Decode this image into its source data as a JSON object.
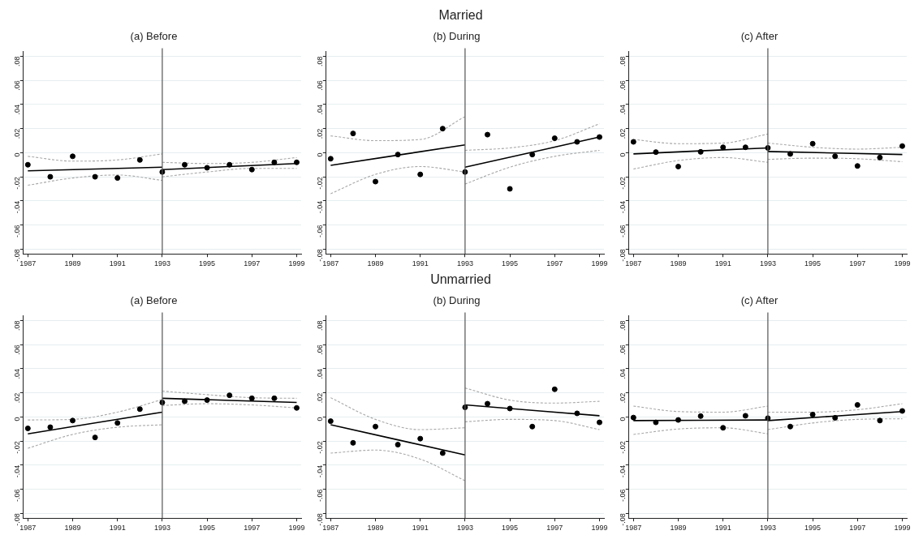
{
  "chart_data": [
    {
      "type": "scatter",
      "title": "(a) Before",
      "xlim": [
        1986.8,
        1999.2
      ],
      "xticks": [
        1987,
        1989,
        1991,
        1993,
        1995,
        1997,
        1999
      ],
      "ylim": [
        -0.084,
        0.084
      ],
      "yticks": [
        {
          "value": -0.08,
          "label": "-.08"
        },
        {
          "value": -0.06,
          "label": "-.06"
        },
        {
          "value": -0.04,
          "label": "-.04"
        },
        {
          "value": -0.02,
          "label": "-.02"
        },
        {
          "value": 0,
          "label": "0"
        },
        {
          "value": 0.02,
          "label": ".02"
        },
        {
          "value": 0.04,
          "label": ".04"
        },
        {
          "value": 0.06,
          "label": ".06"
        },
        {
          "value": 0.08,
          "label": ".08"
        }
      ],
      "grid": "y",
      "legend": false,
      "ref_lines": [
        {
          "axis": "x",
          "value": 1993,
          "color": "#555555"
        }
      ],
      "series": [
        {
          "type": "scatter",
          "marker": "circle",
          "color": "#000000",
          "x": [
            1987,
            1988,
            1989,
            1990,
            1991,
            1992,
            1993,
            1994,
            1995,
            1996,
            1997,
            1998,
            1999
          ],
          "values": [
            -0.01,
            -0.02,
            -0.003,
            -0.02,
            -0.021,
            -0.006,
            -0.016,
            -0.01,
            -0.0125,
            -0.01,
            -0.014,
            -0.008,
            -0.008
          ]
        },
        {
          "type": "line",
          "color": "#000000",
          "line_style": "solid",
          "x": [
            1987,
            1993
          ],
          "values": [
            -0.015,
            -0.012
          ]
        },
        {
          "type": "line",
          "color": "#000000",
          "line_style": "solid",
          "x": [
            1993,
            1999
          ],
          "values": [
            -0.014,
            -0.009
          ]
        },
        {
          "type": "line",
          "color": "#a8a8a8",
          "line_style": "dashed",
          "x": [
            1987,
            1989,
            1991,
            1993
          ],
          "values": [
            -0.003,
            -0.007,
            -0.006,
            -0.001
          ]
        },
        {
          "type": "line",
          "color": "#a8a8a8",
          "line_style": "dashed",
          "x": [
            1987,
            1989,
            1991,
            1993
          ],
          "values": [
            -0.027,
            -0.021,
            -0.0185,
            -0.023
          ]
        },
        {
          "type": "line",
          "color": "#a8a8a8",
          "line_style": "dashed",
          "x": [
            1993,
            1995,
            1997,
            1999
          ],
          "values": [
            -0.008,
            -0.009,
            -0.008,
            -0.004
          ]
        },
        {
          "type": "line",
          "color": "#a8a8a8",
          "line_style": "dashed",
          "x": [
            1993,
            1995,
            1997,
            1999
          ],
          "values": [
            -0.02,
            -0.016,
            -0.013,
            -0.013
          ]
        }
      ]
    },
    {
      "type": "scatter",
      "title": "(b) During",
      "annotations": [
        "Married"
      ],
      "xlim": [
        1986.8,
        1999.2
      ],
      "xticks": [
        1987,
        1989,
        1991,
        1993,
        1995,
        1997,
        1999
      ],
      "ylim": [
        -0.084,
        0.084
      ],
      "yticks": [
        {
          "value": -0.08,
          "label": "-.08"
        },
        {
          "value": -0.06,
          "label": "-.06"
        },
        {
          "value": -0.04,
          "label": "-.04"
        },
        {
          "value": -0.02,
          "label": "-.02"
        },
        {
          "value": 0,
          "label": "0"
        },
        {
          "value": 0.02,
          "label": ".02"
        },
        {
          "value": 0.04,
          "label": ".04"
        },
        {
          "value": 0.06,
          "label": ".06"
        },
        {
          "value": 0.08,
          "label": ".08"
        }
      ],
      "grid": "y",
      "legend": false,
      "ref_lines": [
        {
          "axis": "x",
          "value": 1993,
          "color": "#555555"
        }
      ],
      "series": [
        {
          "type": "scatter",
          "marker": "circle",
          "color": "#000000",
          "x": [
            1987,
            1988,
            1989,
            1990,
            1991,
            1992,
            1993,
            1994,
            1995,
            1996,
            1997,
            1998,
            1999
          ],
          "values": [
            -0.005,
            0.016,
            -0.024,
            -0.0015,
            -0.018,
            0.02,
            -0.016,
            0.015,
            -0.03,
            -0.0015,
            0.012,
            0.009,
            0.013
          ]
        },
        {
          "type": "line",
          "color": "#000000",
          "line_style": "solid",
          "x": [
            1987,
            1993
          ],
          "values": [
            -0.0105,
            0.0065
          ]
        },
        {
          "type": "line",
          "color": "#000000",
          "line_style": "solid",
          "x": [
            1993,
            1999
          ],
          "values": [
            -0.012,
            0.013
          ]
        },
        {
          "type": "line",
          "color": "#a8a8a8",
          "line_style": "dashed",
          "x": [
            1987,
            1989,
            1991,
            1993
          ],
          "values": [
            0.014,
            0.01,
            0.011,
            0.03
          ]
        },
        {
          "type": "line",
          "color": "#a8a8a8",
          "line_style": "dashed",
          "x": [
            1987,
            1989,
            1991,
            1993
          ],
          "values": [
            -0.034,
            -0.018,
            -0.0115,
            -0.016
          ]
        },
        {
          "type": "line",
          "color": "#a8a8a8",
          "line_style": "dashed",
          "x": [
            1993,
            1995,
            1997,
            1999
          ],
          "values": [
            0.002,
            0.004,
            0.01,
            0.024
          ]
        },
        {
          "type": "line",
          "color": "#a8a8a8",
          "line_style": "dashed",
          "x": [
            1993,
            1995,
            1997,
            1999
          ],
          "values": [
            -0.026,
            -0.012,
            -0.003,
            0.002
          ]
        }
      ]
    },
    {
      "type": "scatter",
      "title": "(c) After",
      "xlim": [
        1986.8,
        1999.2
      ],
      "xticks": [
        1987,
        1989,
        1991,
        1993,
        1995,
        1997,
        1999
      ],
      "ylim": [
        -0.084,
        0.084
      ],
      "yticks": [
        {
          "value": -0.08,
          "label": "-.08"
        },
        {
          "value": -0.06,
          "label": "-.06"
        },
        {
          "value": -0.04,
          "label": "-.04"
        },
        {
          "value": -0.02,
          "label": "-.02"
        },
        {
          "value": 0,
          "label": "0"
        },
        {
          "value": 0.02,
          "label": ".02"
        },
        {
          "value": 0.04,
          "label": ".04"
        },
        {
          "value": 0.06,
          "label": ".06"
        },
        {
          "value": 0.08,
          "label": ".08"
        }
      ],
      "grid": "y",
      "legend": false,
      "ref_lines": [
        {
          "axis": "x",
          "value": 1993,
          "color": "#555555"
        }
      ],
      "series": [
        {
          "type": "scatter",
          "marker": "circle",
          "color": "#000000",
          "x": [
            1987,
            1988,
            1989,
            1990,
            1991,
            1992,
            1993,
            1994,
            1995,
            1996,
            1997,
            1998,
            1999
          ],
          "values": [
            0.009,
            0.0005,
            -0.0115,
            0.0007,
            0.0045,
            0.0045,
            0.004,
            -0.001,
            0.0075,
            -0.003,
            -0.011,
            -0.004,
            0.0055
          ]
        },
        {
          "type": "line",
          "color": "#000000",
          "line_style": "solid",
          "x": [
            1987,
            1993
          ],
          "values": [
            -0.001,
            0.004
          ]
        },
        {
          "type": "line",
          "color": "#000000",
          "line_style": "solid",
          "x": [
            1993,
            1999
          ],
          "values": [
            0.001,
            -0.0015
          ]
        },
        {
          "type": "line",
          "color": "#a8a8a8",
          "line_style": "dashed",
          "x": [
            1987,
            1989,
            1991,
            1993
          ],
          "values": [
            0.011,
            0.0075,
            0.008,
            0.0155
          ]
        },
        {
          "type": "line",
          "color": "#a8a8a8",
          "line_style": "dashed",
          "x": [
            1987,
            1989,
            1991,
            1993
          ],
          "values": [
            -0.0135,
            -0.0065,
            -0.004,
            -0.008
          ]
        },
        {
          "type": "line",
          "color": "#a8a8a8",
          "line_style": "dashed",
          "x": [
            1993,
            1995,
            1997,
            1999
          ],
          "values": [
            0.008,
            0.0045,
            0.003,
            0.0045
          ]
        },
        {
          "type": "line",
          "color": "#a8a8a8",
          "line_style": "dashed",
          "x": [
            1993,
            1995,
            1997,
            1999
          ],
          "values": [
            -0.0055,
            -0.0045,
            -0.005,
            -0.0075
          ]
        }
      ]
    },
    {
      "type": "scatter",
      "title": "(a) Before",
      "xlim": [
        1986.8,
        1999.2
      ],
      "xticks": [
        1987,
        1989,
        1991,
        1993,
        1995,
        1997,
        1999
      ],
      "ylim": [
        -0.084,
        0.084
      ],
      "yticks": [
        {
          "value": -0.08,
          "label": "-.08"
        },
        {
          "value": -0.06,
          "label": "-.06"
        },
        {
          "value": -0.04,
          "label": "-.04"
        },
        {
          "value": -0.02,
          "label": "-.02"
        },
        {
          "value": 0,
          "label": "0"
        },
        {
          "value": 0.02,
          "label": ".02"
        },
        {
          "value": 0.04,
          "label": ".04"
        },
        {
          "value": 0.06,
          "label": ".06"
        },
        {
          "value": 0.08,
          "label": ".08"
        }
      ],
      "grid": "y",
      "legend": false,
      "ref_lines": [
        {
          "axis": "x",
          "value": 1993,
          "color": "#555555"
        }
      ],
      "series": [
        {
          "type": "scatter",
          "marker": "circle",
          "color": "#000000",
          "x": [
            1987,
            1988,
            1989,
            1990,
            1991,
            1992,
            1993,
            1994,
            1995,
            1996,
            1997,
            1998,
            1999
          ],
          "values": [
            -0.0095,
            -0.0085,
            -0.003,
            -0.017,
            -0.005,
            0.0065,
            0.012,
            0.013,
            0.014,
            0.018,
            0.0155,
            0.0155,
            0.0075
          ]
        },
        {
          "type": "line",
          "color": "#000000",
          "line_style": "solid",
          "x": [
            1987,
            1993
          ],
          "values": [
            -0.014,
            0.004
          ]
        },
        {
          "type": "line",
          "color": "#000000",
          "line_style": "solid",
          "x": [
            1993,
            1999
          ],
          "values": [
            0.0155,
            0.012
          ]
        },
        {
          "type": "line",
          "color": "#a8a8a8",
          "line_style": "dashed",
          "x": [
            1987,
            1989,
            1991,
            1993
          ],
          "values": [
            -0.0025,
            -0.002,
            0.004,
            0.0145
          ]
        },
        {
          "type": "line",
          "color": "#a8a8a8",
          "line_style": "dashed",
          "x": [
            1987,
            1989,
            1991,
            1993
          ],
          "values": [
            -0.026,
            -0.0145,
            -0.0085,
            -0.0065
          ]
        },
        {
          "type": "line",
          "color": "#a8a8a8",
          "line_style": "dashed",
          "x": [
            1993,
            1995,
            1997,
            1999
          ],
          "values": [
            0.0215,
            0.0185,
            0.016,
            0.0155
          ]
        },
        {
          "type": "line",
          "color": "#a8a8a8",
          "line_style": "dashed",
          "x": [
            1993,
            1995,
            1997,
            1999
          ],
          "values": [
            0.0095,
            0.011,
            0.01,
            0.0075
          ]
        }
      ]
    },
    {
      "type": "scatter",
      "title": "(b) During",
      "annotations": [
        "Unmarried"
      ],
      "xlim": [
        1986.8,
        1999.2
      ],
      "xticks": [
        1987,
        1989,
        1991,
        1993,
        1995,
        1997,
        1999
      ],
      "ylim": [
        -0.084,
        0.084
      ],
      "yticks": [
        {
          "value": -0.08,
          "label": "-.08"
        },
        {
          "value": -0.06,
          "label": "-.06"
        },
        {
          "value": -0.04,
          "label": "-.04"
        },
        {
          "value": -0.02,
          "label": "-.02"
        },
        {
          "value": 0,
          "label": "0"
        },
        {
          "value": 0.02,
          "label": ".02"
        },
        {
          "value": 0.04,
          "label": ".04"
        },
        {
          "value": 0.06,
          "label": ".06"
        },
        {
          "value": 0.08,
          "label": ".08"
        }
      ],
      "grid": "y",
      "legend": false,
      "ref_lines": [
        {
          "axis": "x",
          "value": 1993,
          "color": "#555555"
        }
      ],
      "series": [
        {
          "type": "scatter",
          "marker": "circle",
          "color": "#000000",
          "x": [
            1987,
            1988,
            1989,
            1990,
            1991,
            1992,
            1993,
            1994,
            1995,
            1996,
            1997,
            1998,
            1999
          ],
          "values": [
            -0.0035,
            -0.0215,
            -0.008,
            -0.023,
            -0.018,
            -0.03,
            0.008,
            0.011,
            0.007,
            -0.008,
            0.023,
            0.003,
            -0.0045
          ]
        },
        {
          "type": "line",
          "color": "#000000",
          "line_style": "solid",
          "x": [
            1987,
            1993
          ],
          "values": [
            -0.0065,
            -0.0315
          ]
        },
        {
          "type": "line",
          "color": "#000000",
          "line_style": "solid",
          "x": [
            1993,
            1999
          ],
          "values": [
            0.01,
            0.001
          ]
        },
        {
          "type": "line",
          "color": "#a8a8a8",
          "line_style": "dashed",
          "x": [
            1987,
            1989,
            1991,
            1993
          ],
          "values": [
            0.016,
            -0.002,
            -0.0105,
            -0.009
          ]
        },
        {
          "type": "line",
          "color": "#a8a8a8",
          "line_style": "dashed",
          "x": [
            1987,
            1989,
            1991,
            1993
          ],
          "values": [
            -0.03,
            -0.0275,
            -0.035,
            -0.053
          ]
        },
        {
          "type": "line",
          "color": "#a8a8a8",
          "line_style": "dashed",
          "x": [
            1993,
            1995,
            1997,
            1999
          ],
          "values": [
            0.024,
            0.014,
            0.0115,
            0.013
          ]
        },
        {
          "type": "line",
          "color": "#a8a8a8",
          "line_style": "dashed",
          "x": [
            1993,
            1995,
            1997,
            1999
          ],
          "values": [
            -0.004,
            -0.002,
            -0.003,
            -0.0105
          ]
        }
      ]
    },
    {
      "type": "scatter",
      "title": "(c) After",
      "xlim": [
        1986.8,
        1999.2
      ],
      "xticks": [
        1987,
        1989,
        1991,
        1993,
        1995,
        1997,
        1999
      ],
      "ylim": [
        -0.084,
        0.084
      ],
      "yticks": [
        {
          "value": -0.08,
          "label": "-.08"
        },
        {
          "value": -0.06,
          "label": "-.06"
        },
        {
          "value": -0.04,
          "label": "-.04"
        },
        {
          "value": -0.02,
          "label": "-.02"
        },
        {
          "value": 0,
          "label": "0"
        },
        {
          "value": 0.02,
          "label": ".02"
        },
        {
          "value": 0.04,
          "label": ".04"
        },
        {
          "value": 0.06,
          "label": ".06"
        },
        {
          "value": 0.08,
          "label": ".08"
        }
      ],
      "grid": "y",
      "legend": false,
      "ref_lines": [
        {
          "axis": "x",
          "value": 1993,
          "color": "#555555"
        }
      ],
      "series": [
        {
          "type": "scatter",
          "marker": "circle",
          "color": "#000000",
          "x": [
            1987,
            1988,
            1989,
            1990,
            1991,
            1992,
            1993,
            1994,
            1995,
            1996,
            1997,
            1998,
            1999
          ],
          "values": [
            -0.0005,
            -0.0045,
            -0.0025,
            0.0007,
            -0.009,
            0.001,
            -0.001,
            -0.008,
            0.002,
            -0.0007,
            0.01,
            -0.003,
            0.005
          ]
        },
        {
          "type": "line",
          "color": "#000000",
          "line_style": "solid",
          "x": [
            1987,
            1993
          ],
          "values": [
            -0.003,
            -0.0025
          ]
        },
        {
          "type": "line",
          "color": "#000000",
          "line_style": "solid",
          "x": [
            1993,
            1999
          ],
          "values": [
            -0.003,
            0.0045
          ]
        },
        {
          "type": "line",
          "color": "#a8a8a8",
          "line_style": "dashed",
          "x": [
            1987,
            1989,
            1991,
            1993
          ],
          "values": [
            0.009,
            0.0045,
            0.004,
            0.009
          ]
        },
        {
          "type": "line",
          "color": "#a8a8a8",
          "line_style": "dashed",
          "x": [
            1987,
            1989,
            1991,
            1993
          ],
          "values": [
            -0.0145,
            -0.01,
            -0.009,
            -0.014
          ]
        },
        {
          "type": "line",
          "color": "#a8a8a8",
          "line_style": "dashed",
          "x": [
            1993,
            1995,
            1997,
            1999
          ],
          "values": [
            0.004,
            0.004,
            0.006,
            0.011
          ]
        },
        {
          "type": "line",
          "color": "#a8a8a8",
          "line_style": "dashed",
          "x": [
            1993,
            1995,
            1997,
            1999
          ],
          "values": [
            -0.0105,
            -0.005,
            -0.002,
            -0.0015
          ]
        }
      ]
    }
  ]
}
